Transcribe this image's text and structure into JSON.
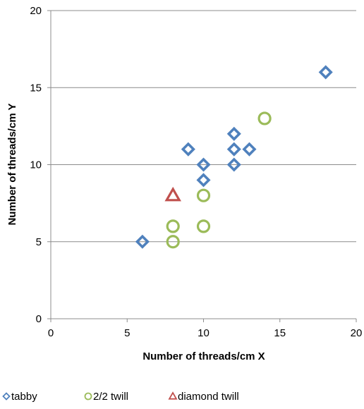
{
  "chart_data": {
    "type": "scatter",
    "title": "",
    "xlabel": "Number of threads/cm X",
    "ylabel": "Number of threads/cm Y",
    "xlim": [
      0,
      20
    ],
    "ylim": [
      0,
      20
    ],
    "x_ticks": [
      "0",
      "5",
      "10",
      "15",
      "20"
    ],
    "y_ticks": [
      "0",
      "5",
      "10",
      "15",
      "20"
    ],
    "grid": "horizontal",
    "legend_position": "bottom",
    "series": [
      {
        "name": "tabby",
        "marker": "diamond",
        "color": "#4f81bd",
        "points": [
          [
            6,
            5
          ],
          [
            9,
            11
          ],
          [
            10,
            10
          ],
          [
            10,
            9
          ],
          [
            12,
            12
          ],
          [
            12,
            11
          ],
          [
            12,
            10
          ],
          [
            13,
            11
          ],
          [
            18,
            16
          ]
        ]
      },
      {
        "name": "2/2 twill",
        "marker": "circle",
        "color": "#9bbb59",
        "points": [
          [
            8,
            6
          ],
          [
            8,
            5
          ],
          [
            10,
            8
          ],
          [
            10,
            6
          ],
          [
            14,
            13
          ]
        ]
      },
      {
        "name": "diamond twill",
        "marker": "triangle",
        "color": "#c0504d",
        "points": [
          [
            8,
            8
          ]
        ]
      }
    ]
  }
}
